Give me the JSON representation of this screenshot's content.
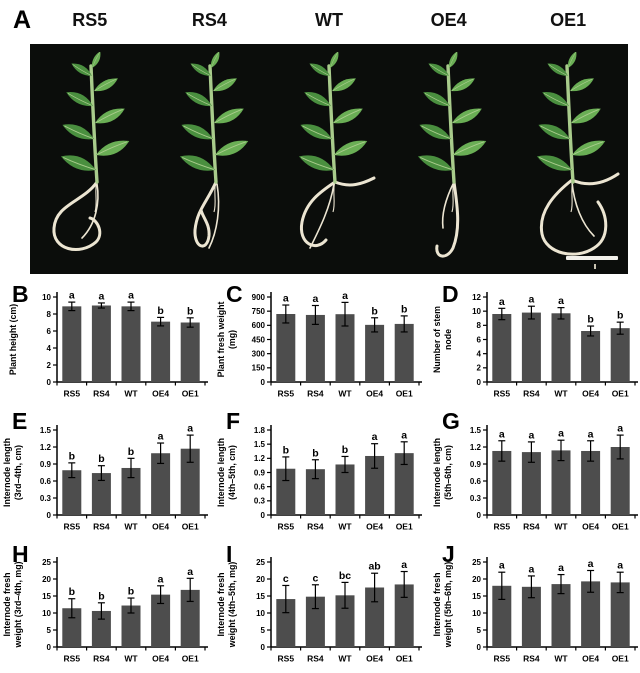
{
  "panel_a": {
    "letter": "A",
    "genotypes": [
      "RS5",
      "RS4",
      "WT",
      "OE4",
      "OE1"
    ]
  },
  "colors": {
    "bar": "#4d4d4d",
    "axis": "#000000",
    "photo_background": "#0b0d0b",
    "leaf_green": "#4a8f3f",
    "leaf_green_light": "#6aae55",
    "stem_green": "#a9cc8c",
    "root_ivory": "#ece5d2"
  },
  "chart_data": [
    {
      "panel": "B",
      "type": "bar",
      "ylabel": "Plant height (cm)",
      "ylabel_lines": [
        "Plant height (cm)"
      ],
      "categories": [
        "RS5",
        "RS4",
        "WT",
        "OE4",
        "OE1"
      ],
      "values": [
        8.9,
        9.0,
        8.9,
        7.1,
        7.0
      ],
      "errors": [
        0.5,
        0.3,
        0.5,
        0.5,
        0.55
      ],
      "sig_letters": [
        "a",
        "a",
        "a",
        "b",
        "b"
      ],
      "ylim": [
        0,
        10
      ],
      "yticks": [
        0,
        2,
        4,
        6,
        8,
        10
      ],
      "ytick_labels": [
        "0",
        "2",
        "4",
        "6",
        "8",
        "10"
      ],
      "legend": "none",
      "grid": false
    },
    {
      "panel": "C",
      "type": "bar",
      "ylabel": "Plant fresh weight (mg)",
      "ylabel_lines": [
        "Plant fresh weight",
        "(mg)"
      ],
      "categories": [
        "RS5",
        "RS4",
        "WT",
        "OE4",
        "OE1"
      ],
      "values": [
        720,
        710,
        718,
        605,
        615
      ],
      "errors": [
        95,
        100,
        125,
        75,
        85
      ],
      "sig_letters": [
        "a",
        "a",
        "a",
        "b",
        "b"
      ],
      "ylim": [
        0,
        900
      ],
      "yticks": [
        0,
        150,
        300,
        450,
        600,
        750,
        900
      ],
      "ytick_labels": [
        "0",
        "150",
        "300",
        "450",
        "600",
        "750",
        "900"
      ],
      "legend": "none",
      "grid": false
    },
    {
      "panel": "D",
      "type": "bar",
      "ylabel": "Number of stem node",
      "ylabel_lines": [
        "Number of stem",
        "node"
      ],
      "categories": [
        "RS5",
        "RS4",
        "WT",
        "OE4",
        "OE1"
      ],
      "values": [
        9.6,
        9.8,
        9.7,
        7.2,
        7.6
      ],
      "errors": [
        0.8,
        0.9,
        0.8,
        0.7,
        0.85
      ],
      "sig_letters": [
        "a",
        "a",
        "a",
        "b",
        "b"
      ],
      "ylim": [
        0,
        12
      ],
      "yticks": [
        0,
        2,
        4,
        6,
        8,
        10,
        12
      ],
      "ytick_labels": [
        "0",
        "2",
        "4",
        "6",
        "8",
        "10",
        "12"
      ],
      "legend": "none",
      "grid": false
    },
    {
      "panel": "E",
      "type": "bar",
      "ylabel": "Internode length (3rd–4th, cm)",
      "ylabel_lines": [
        "Internode length",
        "(3rd–4th, cm)"
      ],
      "categories": [
        "RS5",
        "RS4",
        "WT",
        "OE4",
        "OE1"
      ],
      "values": [
        0.79,
        0.74,
        0.83,
        1.09,
        1.17
      ],
      "errors": [
        0.13,
        0.13,
        0.17,
        0.18,
        0.24
      ],
      "sig_letters": [
        "b",
        "b",
        "b",
        "a",
        "a"
      ],
      "ylim": [
        0,
        1.5
      ],
      "yticks": [
        0,
        0.3,
        0.6,
        0.9,
        1.2,
        1.5
      ],
      "ytick_labels": [
        "0",
        "0.3",
        "0.6",
        "0.9",
        "1.2",
        "1.5"
      ],
      "legend": "none",
      "grid": false
    },
    {
      "panel": "F",
      "type": "bar",
      "ylabel": "Internode length (4th–5th, cm)",
      "ylabel_lines": [
        "Internode length",
        "(4th–5th, cm)"
      ],
      "categories": [
        "RS5",
        "RS4",
        "WT",
        "OE4",
        "OE1"
      ],
      "values": [
        0.98,
        0.97,
        1.07,
        1.25,
        1.31
      ],
      "errors": [
        0.25,
        0.2,
        0.17,
        0.26,
        0.24
      ],
      "sig_letters": [
        "b",
        "b",
        "b",
        "a",
        "a"
      ],
      "ylim": [
        0,
        1.8
      ],
      "yticks": [
        0,
        0.3,
        0.6,
        0.9,
        1.2,
        1.5,
        1.8
      ],
      "ytick_labels": [
        "0",
        "0.3",
        "0.6",
        "0.9",
        "1.2",
        "1.5",
        "1.8"
      ],
      "legend": "none",
      "grid": false
    },
    {
      "panel": "G",
      "type": "bar",
      "ylabel": "Internode length (5th–6th, cm)",
      "ylabel_lines": [
        "Internode length",
        "(5th–6th, cm)"
      ],
      "categories": [
        "RS5",
        "RS4",
        "WT",
        "OE4",
        "OE1"
      ],
      "values": [
        1.13,
        1.11,
        1.14,
        1.13,
        1.2
      ],
      "errors": [
        0.18,
        0.18,
        0.18,
        0.18,
        0.21
      ],
      "sig_letters": [
        "a",
        "a",
        "a",
        "a",
        "a"
      ],
      "ylim": [
        0,
        1.5
      ],
      "yticks": [
        0,
        0.3,
        0.6,
        0.9,
        1.2,
        1.5
      ],
      "ytick_labels": [
        "0",
        "0.3",
        "0.6",
        "0.9",
        "1.2",
        "1.5"
      ],
      "legend": "none",
      "grid": false
    },
    {
      "panel": "H",
      "type": "bar",
      "ylabel": "Internode fresh weight (3rd–4th, mg)",
      "ylabel_lines": [
        "Internode fresh",
        "weight (3rd–4th, mg)"
      ],
      "categories": [
        "RS5",
        "RS4",
        "WT",
        "OE4",
        "OE1"
      ],
      "values": [
        11.4,
        10.6,
        12.2,
        15.4,
        16.8
      ],
      "errors": [
        2.8,
        2.4,
        2.2,
        2.6,
        3.4
      ],
      "sig_letters": [
        "b",
        "b",
        "b",
        "a",
        "a"
      ],
      "ylim": [
        0,
        25
      ],
      "yticks": [
        0,
        5,
        10,
        15,
        20,
        25
      ],
      "ytick_labels": [
        "0",
        "5",
        "10",
        "15",
        "20",
        "25"
      ],
      "legend": "none",
      "grid": false
    },
    {
      "panel": "I",
      "type": "bar",
      "ylabel": "Internode fresh weight (4th–5th, mg)",
      "ylabel_lines": [
        "Internode fresh",
        "weight (4th–5th, mg)"
      ],
      "categories": [
        "RS5",
        "RS4",
        "WT",
        "OE4",
        "OE1"
      ],
      "values": [
        14.1,
        14.8,
        15.2,
        17.5,
        18.4
      ],
      "errors": [
        4.0,
        3.5,
        3.8,
        4.2,
        3.8
      ],
      "sig_letters": [
        "c",
        "c",
        "bc",
        "ab",
        "a"
      ],
      "ylim": [
        0,
        25
      ],
      "yticks": [
        0,
        5,
        10,
        15,
        20,
        25
      ],
      "ytick_labels": [
        "0",
        "5",
        "10",
        "15",
        "20",
        "25"
      ],
      "legend": "none",
      "grid": false
    },
    {
      "panel": "J",
      "type": "bar",
      "ylabel": "Internode fresh weight (5th–6th, mg)",
      "ylabel_lines": [
        "Internode fresh",
        "weight (5th–6th, mg)"
      ],
      "categories": [
        "RS5",
        "RS4",
        "WT",
        "OE4",
        "OE1"
      ],
      "values": [
        18.0,
        17.7,
        18.5,
        19.3,
        19.0
      ],
      "errors": [
        4.0,
        3.2,
        2.8,
        3.2,
        3.0
      ],
      "sig_letters": [
        "a",
        "a",
        "a",
        "a",
        "a"
      ],
      "ylim": [
        0,
        25
      ],
      "yticks": [
        0,
        5,
        10,
        15,
        20,
        25
      ],
      "ytick_labels": [
        "0",
        "5",
        "10",
        "15",
        "20",
        "25"
      ],
      "legend": "none",
      "grid": false
    }
  ]
}
